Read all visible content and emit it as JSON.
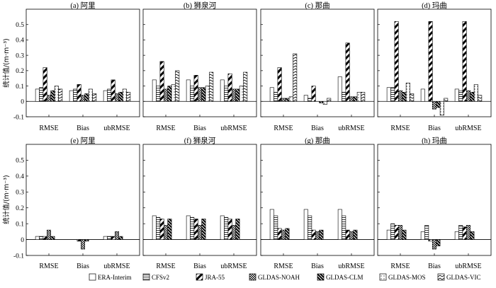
{
  "ylabel": "统计值/(m·m⁻³)",
  "categories": [
    "RMSE",
    "Bias",
    "ubRMSE"
  ],
  "y_ticks": [
    "-0.1",
    "0",
    "0.1",
    "0.2",
    "0.3",
    "0.4",
    "0.5"
  ],
  "legend": [
    {
      "name": "ERA-Interim",
      "pattern": "plain"
    },
    {
      "name": "CFSv2",
      "pattern": "hlines"
    },
    {
      "name": "JRA-55",
      "pattern": "diag-thick"
    },
    {
      "name": "GLDAS-NOAH",
      "pattern": "checker"
    },
    {
      "name": "GLDAS-CLM",
      "pattern": "diag-dense"
    },
    {
      "name": "GLDAS-MOS",
      "pattern": "dots"
    },
    {
      "name": "GLDAS-VIC",
      "pattern": "zigzag"
    }
  ],
  "chart_data": [
    {
      "type": "bar",
      "title": "(a) 阿里",
      "ylim": [
        -0.1,
        0.6
      ],
      "values": [
        [
          0.08,
          0.09,
          0.22,
          0.04,
          0.07,
          0.1,
          0.08
        ],
        [
          0.07,
          0.08,
          0.11,
          0.04,
          0.05,
          0.08,
          0.05
        ],
        [
          0.07,
          0.08,
          0.14,
          0.05,
          0.06,
          0.08,
          0.06
        ]
      ]
    },
    {
      "type": "bar",
      "title": "(b) 狮泉河",
      "ylim": [
        -0.1,
        0.6
      ],
      "values": [
        [
          0.14,
          0.1,
          0.26,
          0.08,
          0.1,
          0.11,
          0.2
        ],
        [
          0.14,
          0.1,
          0.17,
          0.09,
          0.09,
          0.1,
          0.19
        ],
        [
          0.14,
          0.1,
          0.18,
          0.08,
          0.08,
          0.1,
          0.19
        ]
      ]
    },
    {
      "type": "bar",
      "title": "(c) 那曲",
      "ylim": [
        -0.1,
        0.6
      ],
      "values": [
        [
          0.09,
          0.06,
          0.22,
          0.02,
          0.02,
          0.03,
          0.31
        ],
        [
          0.04,
          0.02,
          0.1,
          0.0,
          -0.01,
          -0.02,
          0.02
        ],
        [
          0.16,
          0.06,
          0.38,
          0.03,
          0.03,
          0.06,
          0.06
        ]
      ]
    },
    {
      "type": "bar",
      "title": "(d) 玛曲",
      "ylim": [
        -0.1,
        0.6
      ],
      "values": [
        [
          0.09,
          0.09,
          0.52,
          0.07,
          0.06,
          0.12,
          0.05
        ],
        [
          0.08,
          0.0,
          0.52,
          -0.05,
          -0.04,
          -0.09,
          0.02
        ],
        [
          0.08,
          0.07,
          0.52,
          0.07,
          0.06,
          0.11,
          0.04
        ]
      ]
    },
    {
      "type": "bar",
      "title": "(e) 阿里",
      "ylim": [
        -0.1,
        0.6
      ],
      "values": [
        [
          0.02,
          0.02,
          0.02,
          0.06,
          0.02,
          0.0,
          0.0
        ],
        [
          0.0,
          0.0,
          -0.01,
          -0.06,
          -0.01,
          0.0,
          0.0
        ],
        [
          0.02,
          0.02,
          0.02,
          0.05,
          0.02,
          0.0,
          0.0
        ]
      ]
    },
    {
      "type": "bar",
      "title": "(f) 狮泉河",
      "ylim": [
        -0.1,
        0.6
      ],
      "values": [
        [
          0.15,
          0.14,
          0.13,
          0.09,
          0.13,
          0.0,
          0.0
        ],
        [
          0.15,
          0.14,
          0.13,
          0.09,
          0.13,
          0.0,
          0.0
        ],
        [
          0.15,
          0.14,
          0.13,
          0.09,
          0.13,
          0.0,
          0.0
        ]
      ]
    },
    {
      "type": "bar",
      "title": "(g) 那曲",
      "ylim": [
        -0.1,
        0.6
      ],
      "values": [
        [
          0.19,
          0.15,
          0.07,
          0.06,
          0.07,
          0.0,
          0.0
        ],
        [
          0.19,
          0.15,
          0.06,
          0.05,
          0.06,
          0.0,
          0.0
        ],
        [
          0.19,
          0.15,
          0.06,
          0.05,
          0.06,
          0.0,
          0.0
        ]
      ]
    },
    {
      "type": "bar",
      "title": "(h) 玛曲",
      "ylim": [
        -0.1,
        0.6
      ],
      "values": [
        [
          0.06,
          0.1,
          0.09,
          0.09,
          0.06,
          0.0,
          0.0
        ],
        [
          0.05,
          0.09,
          -0.01,
          -0.06,
          -0.04,
          0.0,
          0.0
        ],
        [
          0.05,
          0.09,
          0.08,
          0.09,
          0.05,
          0.0,
          0.0
        ]
      ]
    }
  ]
}
